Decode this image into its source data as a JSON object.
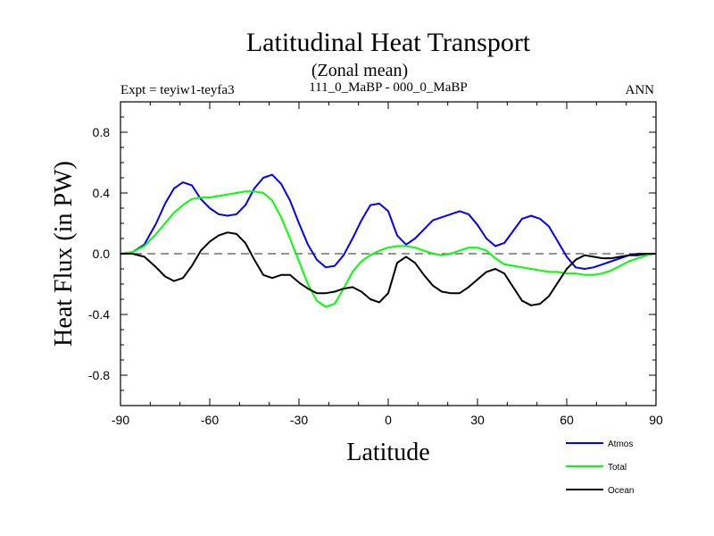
{
  "chart_data": {
    "type": "line",
    "title": "Latitudinal Heat Transport",
    "subtitle": "(Zonal mean)",
    "left_label": "Expt = teyiw1-teyfa3",
    "center_label": "111_0_MaBP - 000_0_MaBP",
    "right_label": "ANN",
    "xlabel": "Latitude",
    "ylabel": "Heat Flux (in PW)",
    "xlim": [
      -90,
      90
    ],
    "ylim": [
      -1.0,
      1.0
    ],
    "x_ticks": [
      -90,
      -60,
      -30,
      0,
      30,
      60,
      90
    ],
    "x_tick_labels": [
      "-90",
      "-60",
      "-30",
      "0",
      "30",
      "60",
      "90"
    ],
    "y_ticks": [
      -0.8,
      -0.4,
      0.0,
      0.4,
      0.8
    ],
    "y_tick_labels": [
      "-0.8",
      "-0.4",
      "0.0",
      "0.4",
      "0.8"
    ],
    "zero_line": "dashed",
    "legend_position": "bottom-right",
    "series": [
      {
        "name": "Atmos",
        "color": "#0000ff",
        "x": [
          -90,
          -86,
          -82,
          -78,
          -75,
          -72,
          -69,
          -66,
          -63,
          -60,
          -57,
          -54,
          -51,
          -48,
          -45,
          -42,
          -39,
          -36,
          -33,
          -30,
          -27,
          -24,
          -21,
          -18,
          -15,
          -12,
          -9,
          -6,
          -3,
          0,
          3,
          6,
          9,
          12,
          15,
          18,
          21,
          24,
          27,
          30,
          33,
          36,
          39,
          42,
          45,
          48,
          51,
          54,
          57,
          60,
          63,
          66,
          69,
          72,
          75,
          78,
          81,
          84,
          87,
          90
        ],
        "values": [
          0.0,
          0.01,
          0.06,
          0.2,
          0.33,
          0.43,
          0.47,
          0.45,
          0.36,
          0.3,
          0.26,
          0.25,
          0.26,
          0.32,
          0.43,
          0.5,
          0.52,
          0.46,
          0.35,
          0.2,
          0.06,
          -0.04,
          -0.09,
          -0.08,
          -0.01,
          0.1,
          0.22,
          0.32,
          0.33,
          0.28,
          0.12,
          0.06,
          0.1,
          0.16,
          0.22,
          0.24,
          0.26,
          0.28,
          0.26,
          0.19,
          0.1,
          0.05,
          0.07,
          0.15,
          0.23,
          0.25,
          0.23,
          0.18,
          0.08,
          -0.02,
          -0.09,
          -0.1,
          -0.09,
          -0.07,
          -0.05,
          -0.03,
          -0.01,
          0.0,
          0.0,
          0.0
        ]
      },
      {
        "name": "Total",
        "color": "#00ff00",
        "x": [
          -90,
          -86,
          -82,
          -78,
          -75,
          -72,
          -69,
          -66,
          -63,
          -60,
          -57,
          -54,
          -51,
          -48,
          -45,
          -42,
          -39,
          -36,
          -33,
          -30,
          -27,
          -24,
          -21,
          -18,
          -15,
          -12,
          -9,
          -6,
          -3,
          0,
          3,
          6,
          9,
          12,
          15,
          18,
          21,
          24,
          27,
          30,
          33,
          36,
          39,
          42,
          45,
          48,
          51,
          54,
          57,
          60,
          63,
          66,
          69,
          72,
          75,
          78,
          81,
          84,
          87,
          90
        ],
        "values": [
          0.0,
          0.01,
          0.05,
          0.13,
          0.2,
          0.27,
          0.32,
          0.36,
          0.37,
          0.37,
          0.38,
          0.39,
          0.4,
          0.41,
          0.41,
          0.4,
          0.35,
          0.24,
          0.1,
          -0.05,
          -0.2,
          -0.31,
          -0.35,
          -0.33,
          -0.23,
          -0.12,
          -0.05,
          -0.01,
          0.02,
          0.04,
          0.05,
          0.05,
          0.04,
          0.02,
          0.0,
          -0.01,
          0.0,
          0.02,
          0.04,
          0.04,
          0.02,
          -0.03,
          -0.07,
          -0.08,
          -0.09,
          -0.1,
          -0.11,
          -0.12,
          -0.12,
          -0.13,
          -0.13,
          -0.14,
          -0.14,
          -0.13,
          -0.11,
          -0.08,
          -0.05,
          -0.03,
          -0.01,
          0.0
        ]
      },
      {
        "name": "Ocean",
        "color": "#000000",
        "x": [
          -90,
          -86,
          -82,
          -78,
          -75,
          -72,
          -69,
          -66,
          -63,
          -60,
          -57,
          -54,
          -51,
          -48,
          -45,
          -42,
          -39,
          -36,
          -33,
          -30,
          -27,
          -24,
          -21,
          -18,
          -15,
          -12,
          -9,
          -6,
          -3,
          0,
          3,
          6,
          9,
          12,
          15,
          18,
          21,
          24,
          27,
          30,
          33,
          36,
          39,
          42,
          45,
          48,
          51,
          54,
          57,
          60,
          63,
          66,
          69,
          72,
          75,
          78,
          81,
          84,
          87,
          90
        ],
        "values": [
          0.0,
          0.0,
          -0.02,
          -0.09,
          -0.15,
          -0.18,
          -0.16,
          -0.08,
          0.02,
          0.08,
          0.12,
          0.14,
          0.13,
          0.07,
          -0.04,
          -0.14,
          -0.16,
          -0.14,
          -0.14,
          -0.19,
          -0.23,
          -0.26,
          -0.26,
          -0.25,
          -0.23,
          -0.22,
          -0.25,
          -0.3,
          -0.32,
          -0.26,
          -0.06,
          -0.02,
          -0.06,
          -0.14,
          -0.21,
          -0.25,
          -0.26,
          -0.26,
          -0.22,
          -0.17,
          -0.12,
          -0.1,
          -0.13,
          -0.22,
          -0.31,
          -0.34,
          -0.33,
          -0.28,
          -0.19,
          -0.1,
          -0.04,
          -0.01,
          -0.02,
          -0.03,
          -0.03,
          -0.02,
          -0.01,
          -0.01,
          0.0,
          0.0
        ]
      }
    ]
  }
}
